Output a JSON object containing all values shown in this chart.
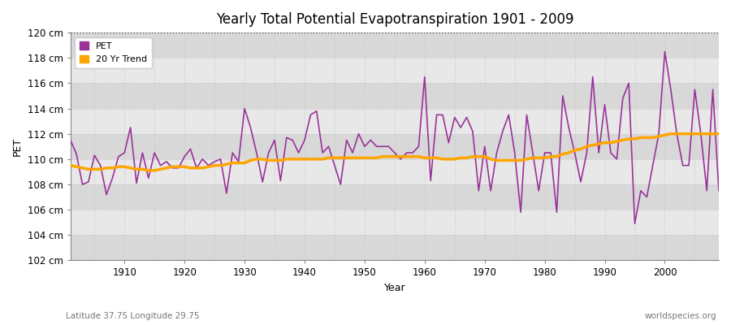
{
  "title": "Yearly Total Potential Evapotranspiration 1901 - 2009",
  "xlabel": "Year",
  "ylabel": "PET",
  "subtitle_left": "Latitude 37.75 Longitude 29.75",
  "subtitle_right": "worldspecies.org",
  "pet_color": "#993399",
  "trend_color": "#FFA500",
  "fig_bg_color": "#ffffff",
  "plot_bg_color": "#e8e8e8",
  "band_color_dark": "#d8d8d8",
  "band_color_light": "#e8e8e8",
  "ylim": [
    102,
    120
  ],
  "xlim": [
    1901,
    2009
  ],
  "ytick_step": 2,
  "years": [
    1901,
    1902,
    1903,
    1904,
    1905,
    1906,
    1907,
    1908,
    1909,
    1910,
    1911,
    1912,
    1913,
    1914,
    1915,
    1916,
    1917,
    1918,
    1919,
    1920,
    1921,
    1922,
    1923,
    1924,
    1925,
    1926,
    1927,
    1928,
    1929,
    1930,
    1931,
    1932,
    1933,
    1934,
    1935,
    1936,
    1937,
    1938,
    1939,
    1940,
    1941,
    1942,
    1943,
    1944,
    1945,
    1946,
    1947,
    1948,
    1949,
    1950,
    1951,
    1952,
    1953,
    1954,
    1955,
    1956,
    1957,
    1958,
    1959,
    1960,
    1961,
    1962,
    1963,
    1964,
    1965,
    1966,
    1967,
    1968,
    1969,
    1970,
    1971,
    1972,
    1973,
    1974,
    1975,
    1976,
    1977,
    1978,
    1979,
    1980,
    1981,
    1982,
    1983,
    1984,
    1985,
    1986,
    1987,
    1988,
    1989,
    1990,
    1991,
    1992,
    1993,
    1994,
    1995,
    1996,
    1997,
    1998,
    1999,
    2000,
    2001,
    2002,
    2003,
    2004,
    2005,
    2006,
    2007,
    2008,
    2009
  ],
  "pet_values": [
    111.5,
    110.4,
    108.0,
    108.2,
    110.3,
    109.5,
    107.2,
    108.5,
    110.2,
    110.5,
    112.5,
    108.1,
    110.5,
    108.5,
    110.5,
    109.5,
    109.8,
    109.3,
    109.3,
    110.2,
    110.8,
    109.3,
    110.0,
    109.5,
    109.8,
    110.0,
    107.3,
    110.5,
    109.8,
    114.0,
    112.5,
    110.5,
    108.2,
    110.5,
    111.5,
    108.3,
    111.7,
    111.5,
    110.5,
    111.5,
    113.5,
    113.8,
    110.5,
    111.0,
    109.5,
    108.0,
    111.5,
    110.5,
    112.0,
    111.0,
    111.5,
    111.0,
    111.0,
    111.0,
    110.5,
    110.0,
    110.5,
    110.5,
    111.0,
    116.5,
    108.3,
    113.5,
    113.5,
    111.3,
    113.3,
    112.5,
    113.3,
    112.2,
    107.5,
    111.0,
    107.5,
    110.5,
    112.2,
    113.5,
    110.5,
    105.8,
    113.5,
    110.5,
    107.5,
    110.5,
    110.5,
    105.8,
    115.0,
    112.5,
    110.5,
    108.2,
    110.5,
    116.5,
    110.5,
    114.3,
    110.5,
    110.0,
    114.8,
    116.0,
    104.9,
    107.5,
    107.0,
    109.5,
    112.0,
    118.5,
    115.5,
    112.0,
    109.5,
    109.5,
    115.5,
    112.0,
    107.5,
    115.5,
    107.5
  ],
  "trend_values": [
    109.5,
    109.4,
    109.3,
    109.2,
    109.2,
    109.2,
    109.3,
    109.3,
    109.4,
    109.4,
    109.3,
    109.2,
    109.2,
    109.1,
    109.1,
    109.2,
    109.3,
    109.4,
    109.4,
    109.4,
    109.3,
    109.3,
    109.3,
    109.4,
    109.5,
    109.5,
    109.6,
    109.7,
    109.7,
    109.7,
    109.9,
    110.0,
    110.0,
    109.9,
    109.9,
    109.9,
    110.0,
    110.0,
    110.0,
    110.0,
    110.0,
    110.0,
    110.0,
    110.1,
    110.1,
    110.1,
    110.1,
    110.1,
    110.1,
    110.1,
    110.1,
    110.1,
    110.2,
    110.2,
    110.2,
    110.2,
    110.2,
    110.2,
    110.2,
    110.1,
    110.1,
    110.1,
    110.0,
    110.0,
    110.0,
    110.1,
    110.1,
    110.2,
    110.2,
    110.2,
    110.0,
    109.9,
    109.9,
    109.9,
    109.9,
    109.9,
    110.0,
    110.1,
    110.1,
    110.1,
    110.2,
    110.2,
    110.4,
    110.5,
    110.7,
    110.8,
    111.0,
    111.1,
    111.2,
    111.3,
    111.3,
    111.4,
    111.5,
    111.6,
    111.6,
    111.7,
    111.7,
    111.7,
    111.8,
    111.9,
    112.0,
    112.0,
    112.0,
    112.0,
    112.0,
    112.0,
    112.0,
    112.0,
    112.0
  ]
}
